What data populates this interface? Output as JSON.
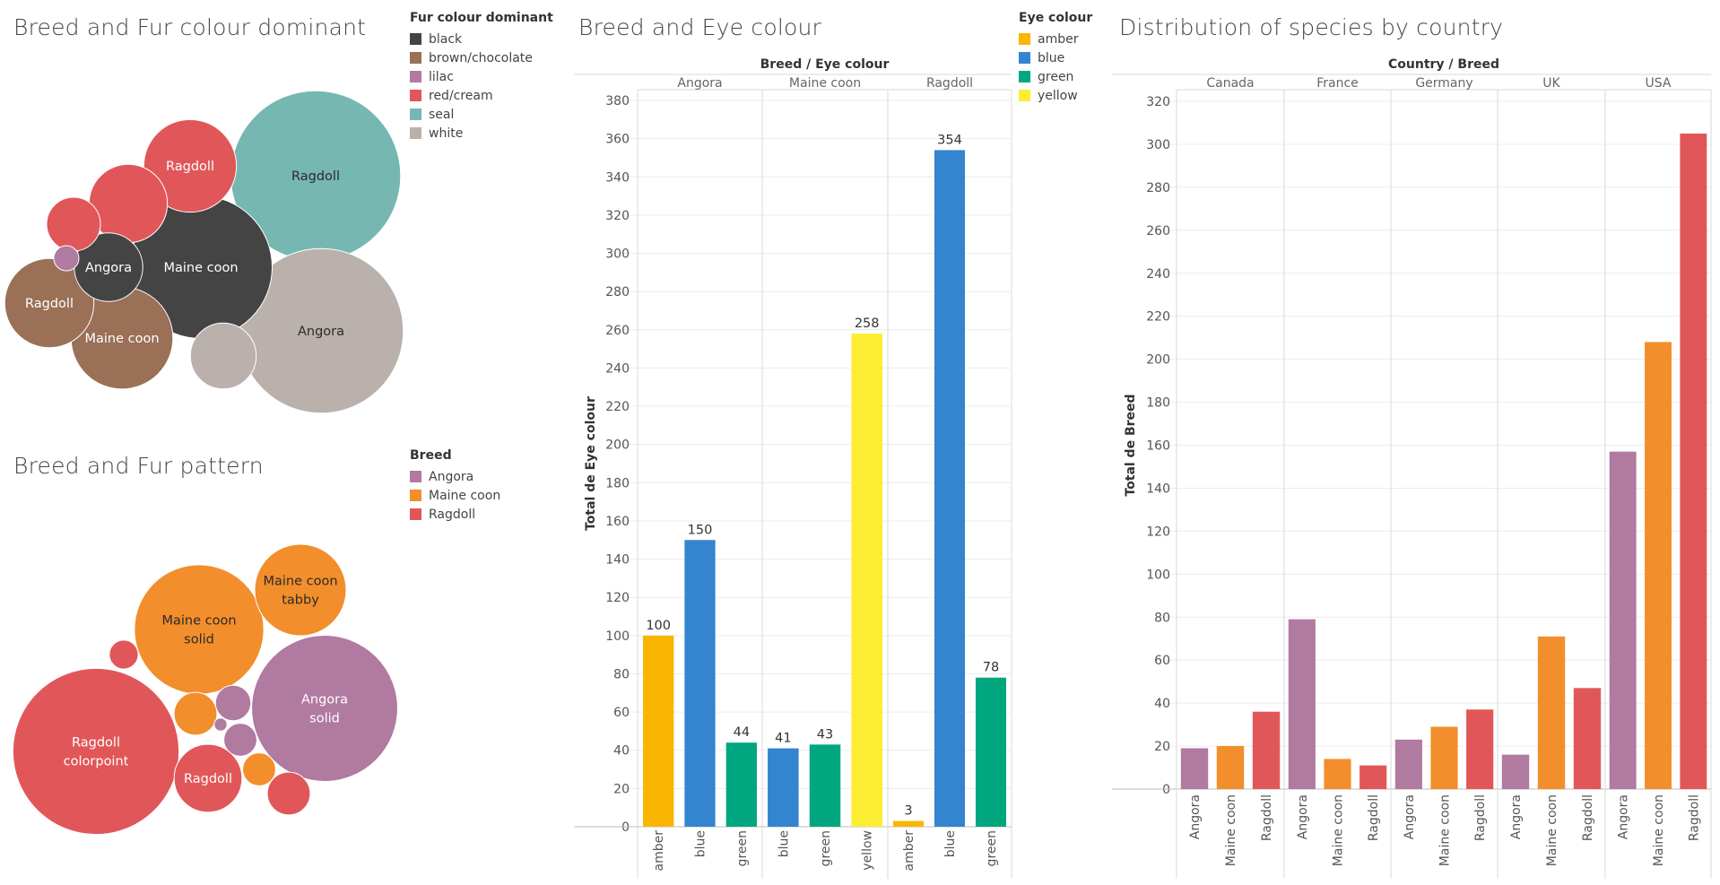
{
  "colors": {
    "fur": {
      "black": "#444444",
      "brown/chocolate": "#9a7057",
      "lilac": "#b07aa1",
      "red/cream": "#e15759",
      "seal": "#76b7b2",
      "white": "#bab0ac"
    },
    "eye": {
      "amber": "#f9b500",
      "blue": "#3484d0",
      "green": "#00a77e",
      "yellow": "#fded32"
    },
    "breed": {
      "Angora": "#b07aa1",
      "Maine coon": "#f28e2b",
      "Ragdoll": "#e15759"
    }
  },
  "fur_colour_panel": {
    "title": "Breed and Fur colour dominant",
    "legend": {
      "title": "Fur colour dominant",
      "items": [
        "black",
        "brown/chocolate",
        "lilac",
        "red/cream",
        "seal",
        "white"
      ]
    }
  },
  "fur_pattern_panel": {
    "title": "Breed and Fur pattern",
    "legend": {
      "title": "Breed",
      "items": [
        "Angora",
        "Maine coon",
        "Ragdoll"
      ]
    }
  },
  "eye_panel": {
    "title": "Breed and Eye colour",
    "header": "Breed  /  Eye colour",
    "ylabel": "Total de Eye colour",
    "legend": {
      "title": "Eye colour",
      "items": [
        "amber",
        "blue",
        "green",
        "yellow"
      ]
    }
  },
  "country_panel": {
    "title": "Distribution of species by country",
    "header": "Country / Breed",
    "ylabel": "Total de Breed"
  },
  "chart_data": [
    {
      "type": "bubble",
      "title": "Breed and Fur colour dominant",
      "legend_title": "Fur colour dominant",
      "bubbles": [
        {
          "label": "Ragdoll",
          "colour": "seal",
          "value": 320
        },
        {
          "label": "Angora",
          "colour": "white",
          "value": 300
        },
        {
          "label": "Maine coon",
          "colour": "black",
          "value": 225
        },
        {
          "label": "Ragdoll",
          "colour": "red/cream",
          "value": 95
        },
        {
          "label": "",
          "colour": "red/cream",
          "value": 68
        },
        {
          "label": "Maine coon",
          "colour": "brown/chocolate",
          "value": 115
        },
        {
          "label": "Ragdoll",
          "colour": "brown/chocolate",
          "value": 88
        },
        {
          "label": "Angora",
          "colour": "black",
          "value": 52
        },
        {
          "label": "",
          "colour": "red/cream",
          "value": 32
        },
        {
          "label": "",
          "colour": "white",
          "value": 48
        },
        {
          "label": "",
          "colour": "lilac",
          "value": 7
        }
      ]
    },
    {
      "type": "bubble",
      "title": "Breed and Fur pattern",
      "legend_title": "Breed",
      "bubbles": [
        {
          "label": "Ragdoll colorpoint",
          "breed": "Ragdoll",
          "value": 330
        },
        {
          "label": "Angora solid",
          "breed": "Angora",
          "value": 255
        },
        {
          "label": "Maine coon solid",
          "breed": "Maine coon",
          "value": 200
        },
        {
          "label": "Maine coon tabby",
          "breed": "Maine coon",
          "value": 100
        },
        {
          "label": "Ragdoll",
          "breed": "Ragdoll",
          "value": 55
        },
        {
          "label": "",
          "breed": "Maine coon",
          "value": 22
        },
        {
          "label": "",
          "breed": "Angora",
          "value": 15
        },
        {
          "label": "",
          "breed": "Angora",
          "value": 13
        },
        {
          "label": "",
          "breed": "Ragdoll",
          "value": 22
        },
        {
          "label": "",
          "breed": "Maine coon",
          "value": 13
        },
        {
          "label": "",
          "breed": "Ragdoll",
          "value": 10
        },
        {
          "label": "",
          "breed": "Angora",
          "value": 2
        }
      ]
    },
    {
      "type": "bar",
      "title": "Breed and Eye colour",
      "ylabel": "Total de Eye colour",
      "ylim": [
        0,
        380
      ],
      "yticks": [
        0,
        20,
        40,
        60,
        80,
        100,
        120,
        140,
        160,
        180,
        200,
        220,
        240,
        260,
        280,
        300,
        320,
        340,
        360,
        380
      ],
      "groups": [
        {
          "name": "Angora",
          "bars": [
            {
              "category": "amber",
              "value": 100
            },
            {
              "category": "blue",
              "value": 150
            },
            {
              "category": "green",
              "value": 44
            }
          ]
        },
        {
          "name": "Maine coon",
          "bars": [
            {
              "category": "blue",
              "value": 41
            },
            {
              "category": "green",
              "value": 43
            },
            {
              "category": "yellow",
              "value": 258
            }
          ]
        },
        {
          "name": "Ragdoll",
          "bars": [
            {
              "category": "amber",
              "value": 3
            },
            {
              "category": "blue",
              "value": 354
            },
            {
              "category": "green",
              "value": 78
            }
          ]
        }
      ]
    },
    {
      "type": "bar",
      "title": "Distribution of species by country",
      "ylabel": "Total de Breed",
      "ylim": [
        0,
        320
      ],
      "yticks": [
        0,
        20,
        40,
        60,
        80,
        100,
        120,
        140,
        160,
        180,
        200,
        220,
        240,
        260,
        280,
        300,
        320
      ],
      "groups": [
        {
          "name": "Canada",
          "bars": [
            {
              "category": "Angora",
              "value": 19
            },
            {
              "category": "Maine coon",
              "value": 20
            },
            {
              "category": "Ragdoll",
              "value": 36
            }
          ]
        },
        {
          "name": "France",
          "bars": [
            {
              "category": "Angora",
              "value": 79
            },
            {
              "category": "Maine coon",
              "value": 14
            },
            {
              "category": "Ragdoll",
              "value": 11
            }
          ]
        },
        {
          "name": "Germany",
          "bars": [
            {
              "category": "Angora",
              "value": 23
            },
            {
              "category": "Maine coon",
              "value": 29
            },
            {
              "category": "Ragdoll",
              "value": 37
            }
          ]
        },
        {
          "name": "UK",
          "bars": [
            {
              "category": "Angora",
              "value": 16
            },
            {
              "category": "Maine coon",
              "value": 71
            },
            {
              "category": "Ragdoll",
              "value": 47
            }
          ]
        },
        {
          "name": "USA",
          "bars": [
            {
              "category": "Angora",
              "value": 157
            },
            {
              "category": "Maine coon",
              "value": 208
            },
            {
              "category": "Ragdoll",
              "value": 305
            }
          ]
        }
      ]
    }
  ]
}
